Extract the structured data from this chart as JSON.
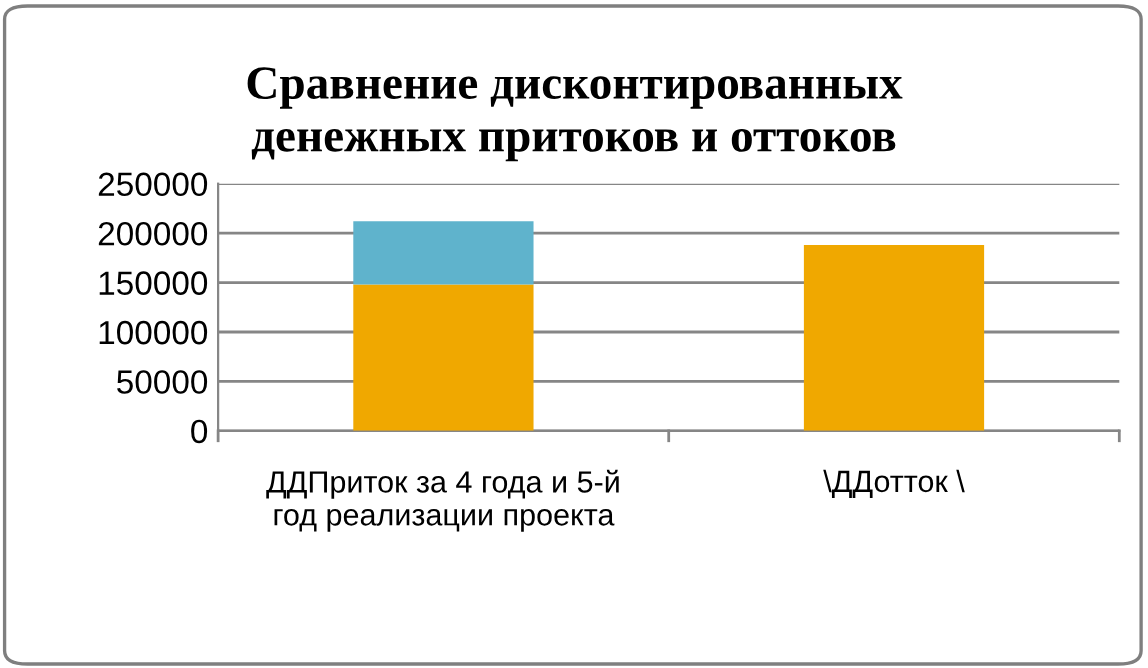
{
  "chart_data": {
    "type": "bar",
    "title": "Сравнение дисконтированных\nденежных притоков и оттоков",
    "categories": [
      "ДДПриток за 4 года и 5-й\nгод реализации проекта",
      "\\ДДотток \\"
    ],
    "stacked": true,
    "series": [
      {
        "color": "#f0a800",
        "values": [
          148000,
          188000
        ]
      },
      {
        "color": "#5fb3cc",
        "values": [
          64000,
          null
        ]
      }
    ],
    "ylim": [
      0,
      250000
    ],
    "yticks": [
      0,
      50000,
      100000,
      150000,
      200000,
      250000
    ],
    "grid": "y"
  }
}
